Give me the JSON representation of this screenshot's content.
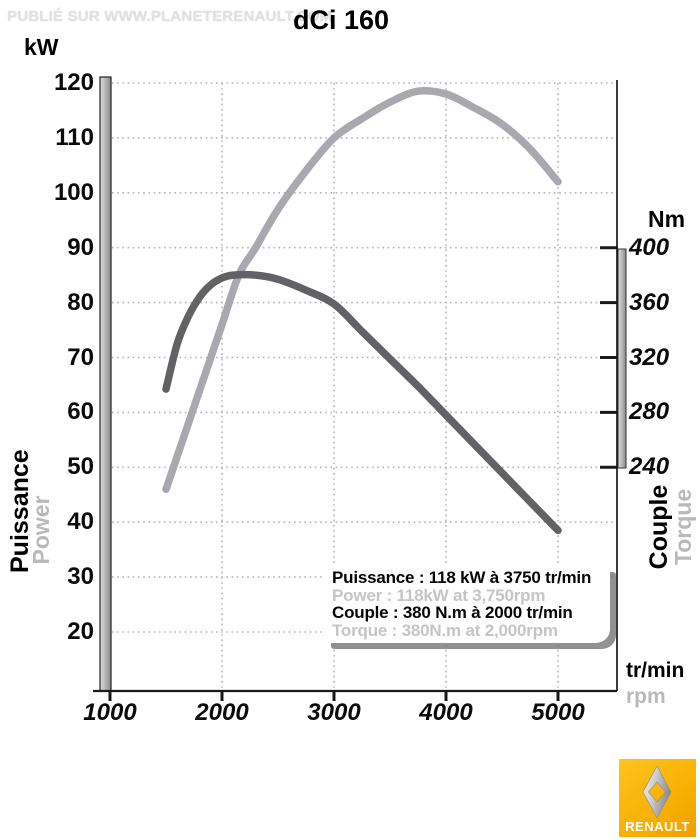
{
  "watermark": "PUBLIÉ SUR WWW.PLANETERENAULT.COM",
  "title": "dCi 160",
  "axis_labels": {
    "left_unit": "kW",
    "right_unit": "Nm",
    "x_unit_primary": "tr/min",
    "x_unit_secondary": "rpm",
    "left_axis_fr": "Puissance",
    "left_axis_en": "Power",
    "right_axis_fr": "Couple",
    "right_axis_en": "Torque"
  },
  "legend": {
    "power_fr": "Puissance : 118 kW à 3750 tr/min",
    "power_en": "Power : 118kW at 3,750rpm",
    "torque_fr": "Couple : 380 N.m à 2000 tr/min",
    "torque_en": "Torque : 380N.m at 2,000rpm"
  },
  "logo": {
    "brand": "RENAULT"
  },
  "colors": {
    "power_curve": "#a8a8ae",
    "torque_curve": "#626266",
    "grid": "#b4b4b4",
    "axis": "#1a1a1a",
    "muted_text": "#b9b9b9",
    "legend_muted": "#c5c5c5",
    "watermark": "#e1e1e1",
    "logo_yellow": "#f8b100"
  },
  "chart_data": {
    "type": "line",
    "title": "dCi 160",
    "grid": "dotted",
    "x": {
      "unit": "tr/min (rpm)",
      "ticks": [
        1000,
        2000,
        3000,
        4000,
        5000
      ],
      "range": [
        1000,
        5530
      ]
    },
    "y_left": {
      "unit": "kW",
      "quantity": "Puissance / Power",
      "ticks": [
        120,
        110,
        100,
        90,
        80,
        70,
        60,
        50,
        40,
        30,
        20
      ]
    },
    "y_right": {
      "unit": "Nm",
      "quantity": "Couple / Torque",
      "ticks": [
        400,
        360,
        320,
        280,
        240
      ]
    },
    "series": [
      {
        "name": "Puissance / Power",
        "axis": "left",
        "unit": "kW",
        "peak_label": "118 kW à 3750 tr/min",
        "points": [
          [
            1500,
            46
          ],
          [
            1600,
            52
          ],
          [
            1700,
            58
          ],
          [
            1800,
            64
          ],
          [
            1900,
            70
          ],
          [
            2000,
            76
          ],
          [
            2150,
            85
          ],
          [
            2300,
            90
          ],
          [
            2500,
            97
          ],
          [
            2750,
            104
          ],
          [
            3000,
            110
          ],
          [
            3250,
            113.5
          ],
          [
            3500,
            116.5
          ],
          [
            3750,
            118.5
          ],
          [
            4000,
            118
          ],
          [
            4250,
            115.5
          ],
          [
            4500,
            112.5
          ],
          [
            4750,
            108
          ],
          [
            5000,
            102
          ]
        ]
      },
      {
        "name": "Couple / Torque",
        "axis": "right",
        "unit": "Nm",
        "peak_label": "380 N.m à 2000 tr/min",
        "points": [
          [
            1500,
            297
          ],
          [
            1600,
            330
          ],
          [
            1700,
            350
          ],
          [
            1800,
            364
          ],
          [
            1900,
            373
          ],
          [
            2000,
            378
          ],
          [
            2100,
            380
          ],
          [
            2300,
            380
          ],
          [
            2500,
            377
          ],
          [
            2750,
            369
          ],
          [
            3000,
            359
          ],
          [
            3250,
            339
          ],
          [
            3500,
            319
          ],
          [
            3750,
            299
          ],
          [
            4000,
            278
          ],
          [
            4250,
            257
          ],
          [
            4500,
            236
          ],
          [
            4750,
            215
          ],
          [
            5000,
            194
          ]
        ]
      }
    ]
  }
}
